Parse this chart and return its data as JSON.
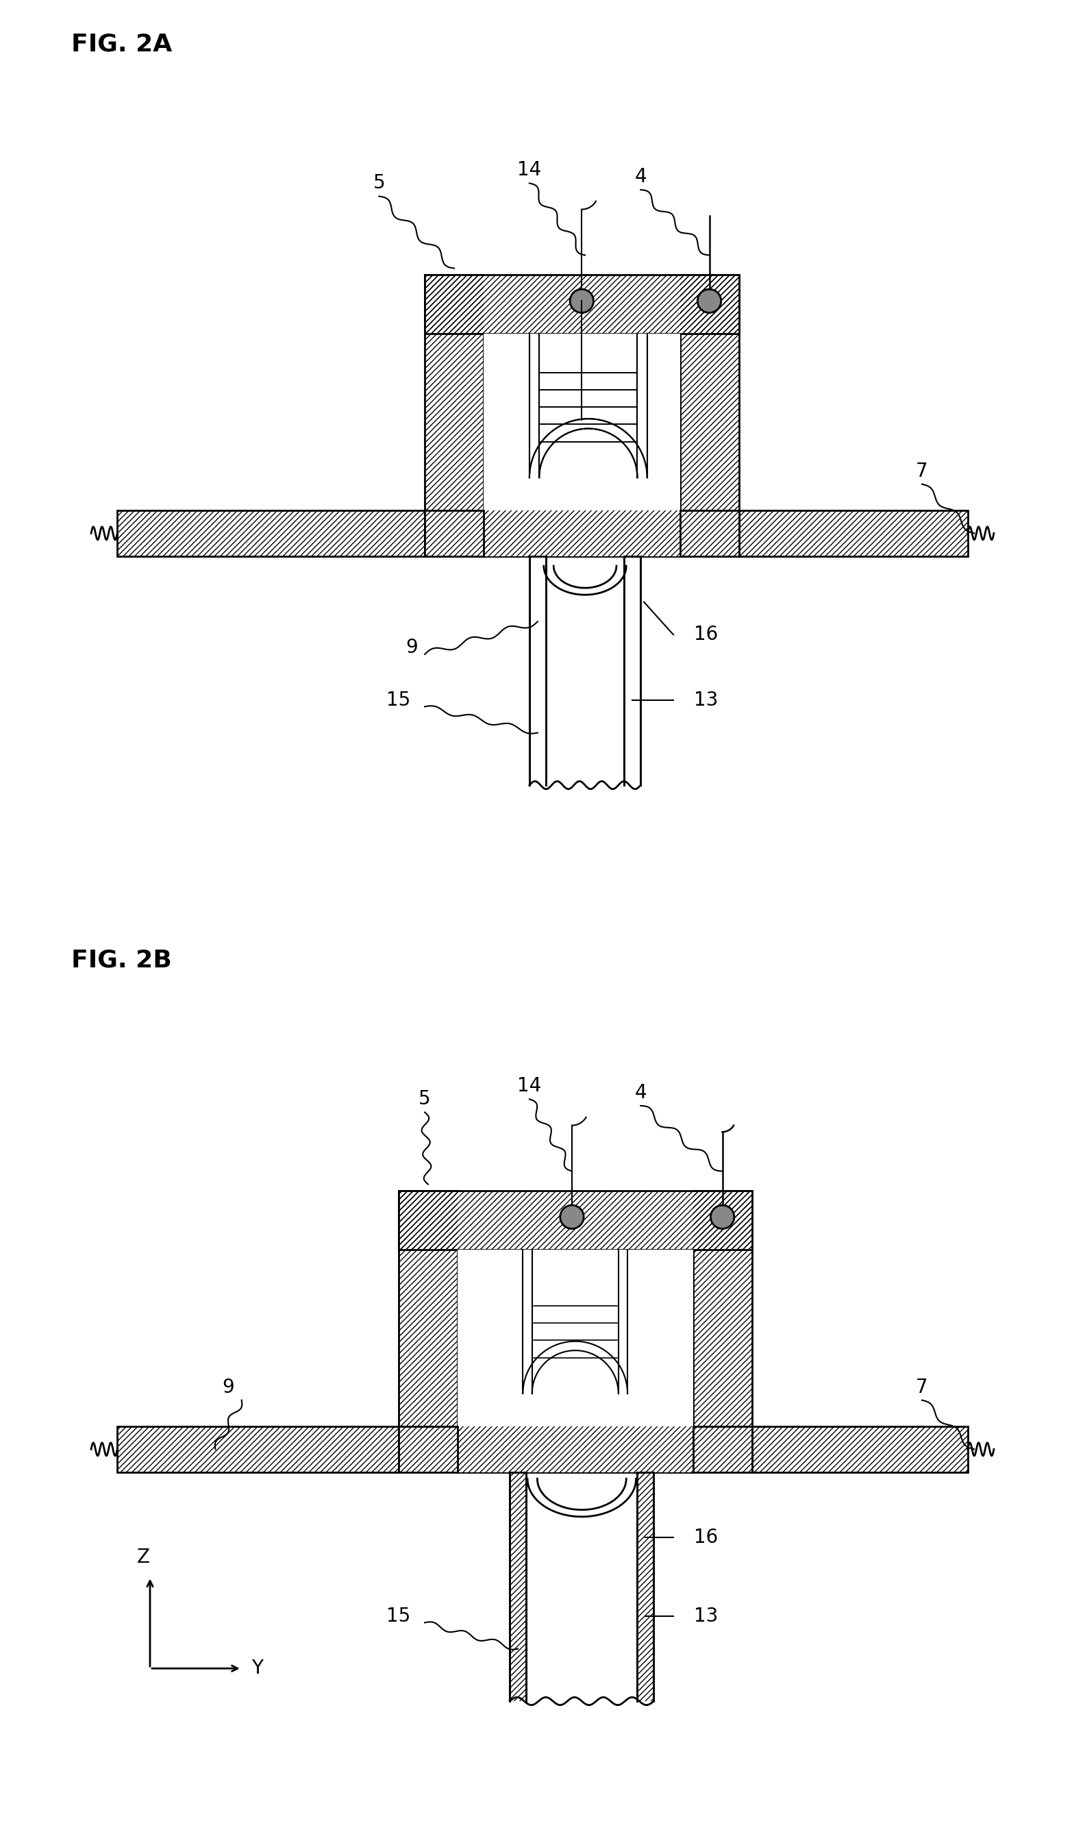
{
  "fig_width": 15.84,
  "fig_height": 26.74,
  "background_color": "#ffffff",
  "lw": 2.0,
  "lw_thin": 1.2,
  "label_fontsize": 20,
  "title_fontsize": 26,
  "fig2a_title": "FIG. 2A",
  "fig2b_title": "FIG. 2B",
  "hatch": "////"
}
